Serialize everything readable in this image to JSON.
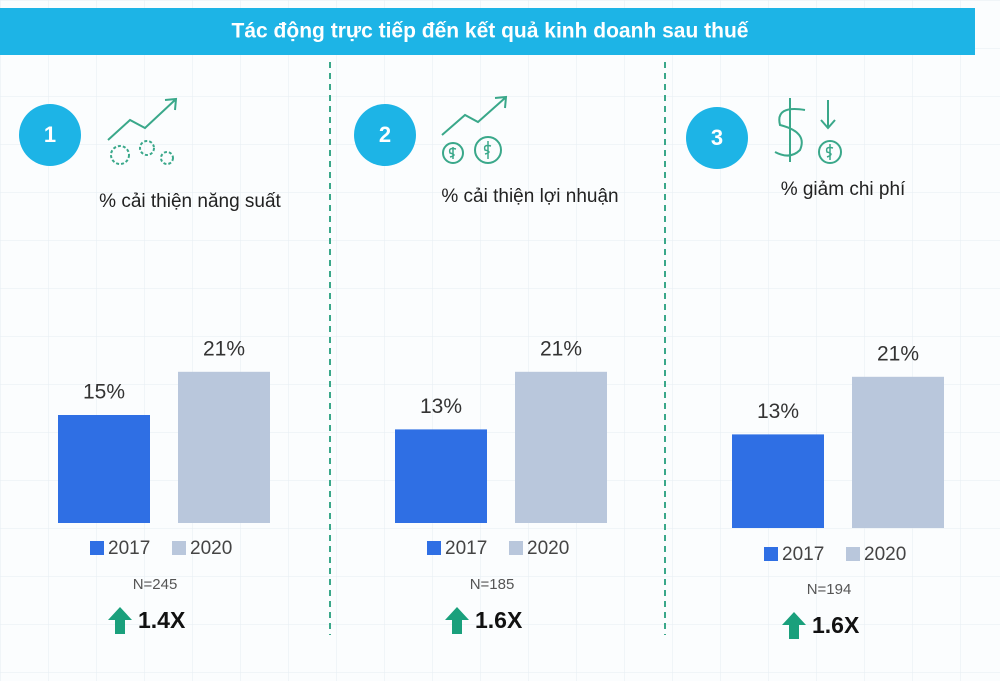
{
  "title": "Tác động trực tiếp đến kết quả kinh doanh sau thuế",
  "chart_data": [
    {
      "type": "bar",
      "number": "1",
      "title": "% cải thiện năng suất",
      "series": [
        {
          "name": "2017",
          "color": "#2f6fe4",
          "values": [
            15
          ],
          "value_labels": [
            "15%"
          ]
        },
        {
          "name": "2020",
          "color": "#b9c7dc",
          "values": [
            21
          ],
          "value_labels": [
            "21%"
          ]
        }
      ],
      "note": "N=245",
      "multiplier": "1.4X"
    },
    {
      "type": "bar",
      "number": "2",
      "title": "% cải thiện lợi nhuận",
      "series": [
        {
          "name": "2017",
          "color": "#2f6fe4",
          "values": [
            13
          ],
          "value_labels": [
            "13%"
          ]
        },
        {
          "name": "2020",
          "color": "#b9c7dc",
          "values": [
            21
          ],
          "value_labels": [
            "21%"
          ]
        }
      ],
      "note": "N=185",
      "multiplier": "1.6X"
    },
    {
      "type": "bar",
      "number": "3",
      "title": "% giảm chi phí",
      "series": [
        {
          "name": "2017",
          "color": "#2f6fe4",
          "values": [
            13
          ],
          "value_labels": [
            "13%"
          ]
        },
        {
          "name": "2020",
          "color": "#b9c7dc",
          "values": [
            21
          ],
          "value_labels": [
            "21%"
          ]
        }
      ],
      "note": "N=194",
      "multiplier": "1.6X"
    }
  ]
}
